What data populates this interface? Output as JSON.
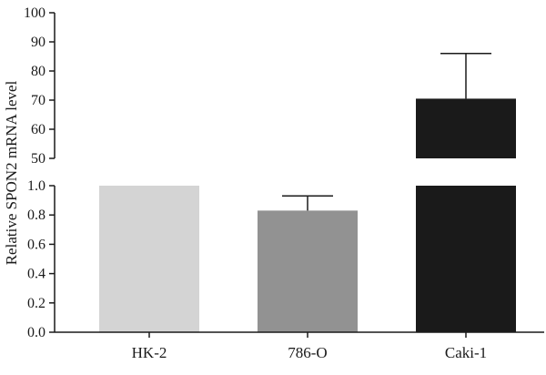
{
  "chart_data": {
    "type": "bar",
    "broken_axis": true,
    "title": "",
    "xlabel": "",
    "ylabel": "Relative SPON2 mRNA level",
    "categories": [
      "HK-2",
      "786-O",
      "Caki-1"
    ],
    "values": [
      1.0,
      0.83,
      70.5
    ],
    "error_upper": [
      null,
      0.93,
      86
    ],
    "colors": [
      "#d4d4d4",
      "#929292",
      "#1a1a1a"
    ],
    "lower_segment": {
      "ylim": [
        0.0,
        1.0
      ],
      "ticks": [
        "0.0",
        "0.2",
        "0.4",
        "0.6",
        "0.8",
        "1.0"
      ]
    },
    "upper_segment": {
      "ylim": [
        50,
        100
      ],
      "ticks": [
        "50",
        "60",
        "70",
        "80",
        "90",
        "100"
      ]
    },
    "grid": false,
    "legend": "none"
  }
}
